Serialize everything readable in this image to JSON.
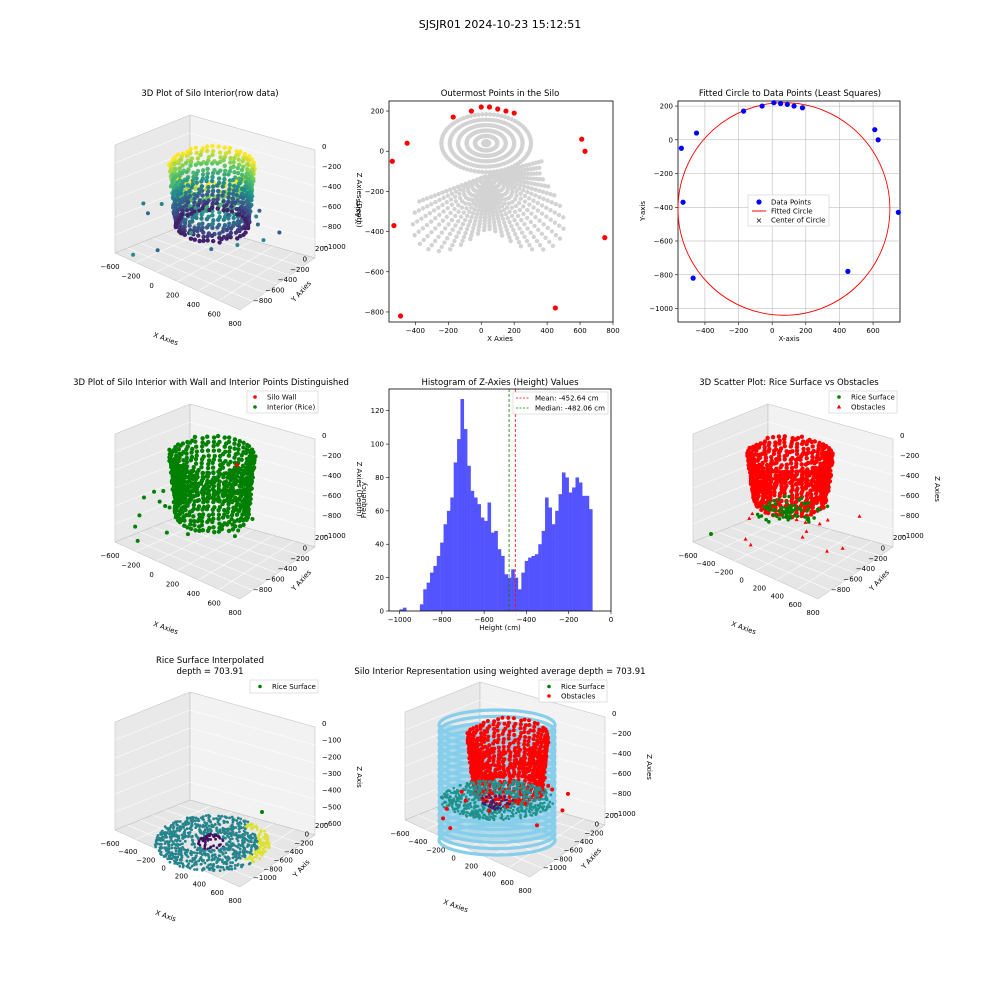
{
  "suptitle": "SJSJR01 2024-10-23 15:12:51",
  "panels": {
    "p1": {
      "title": "3D Plot of Silo Interior(row data)",
      "xlabel": "X Axies",
      "ylabel": "Y Axies",
      "zlabel": "Z Axies (Depth)",
      "xticks": [
        "−600",
        "−200",
        "0",
        "200",
        "400",
        "600",
        "800"
      ],
      "xticks_extra": "−400",
      "yticks": [
        "200",
        "0",
        "−200",
        "−400",
        "−600",
        "−800"
      ],
      "zticks": [
        "0",
        "−200",
        "−400",
        "−600",
        "−800",
        "−1000"
      ]
    },
    "p2": {
      "title": "Outermost Points in the Silo",
      "xlabel": "X Axies",
      "ylabel": "Y Axies",
      "xticks": [
        "−400",
        "−200",
        "0",
        "200",
        "400",
        "600",
        "800"
      ],
      "yticks": [
        "200",
        "0",
        "−200",
        "−400",
        "−600",
        "−800"
      ]
    },
    "p3": {
      "title": "Fitted Circle to Data Points (Least Squares)",
      "xlabel": "X-axis",
      "ylabel": "Y-axis",
      "xticks": [
        "−400",
        "−200",
        "0",
        "200",
        "400",
        "600"
      ],
      "yticks": [
        "200",
        "0",
        "−200",
        "−400",
        "−600",
        "−800",
        "−1000"
      ],
      "legend": [
        "Data Points",
        "Fitted Circle",
        "Center of Circle"
      ]
    },
    "p4": {
      "title": "3D Plot of Silo Interior with Wall and Interior Points Distinguished",
      "xlabel": "X Axies",
      "ylabel": "Y Axies",
      "zlabel": "Z Axies (Depth)",
      "legend": [
        "Silo Wall",
        "Interior (Rice)"
      ]
    },
    "p5": {
      "title": "Histogram of Z-Axies (Height) Values",
      "xlabel": "Height (cm)",
      "ylabel": "Frequency",
      "xticks": [
        "−1000",
        "−800",
        "−600",
        "−400",
        "−200",
        "0"
      ],
      "yticks": [
        "0",
        "20",
        "40",
        "60",
        "80",
        "100",
        "120"
      ],
      "legend": [
        "Mean: -452.64 cm",
        "Median: -482.06 cm"
      ]
    },
    "p6": {
      "title": "3D Scatter Plot: Rice Surface vs Obstacles",
      "xlabel": "X Axies",
      "ylabel": "Y Axies",
      "zlabel": "Z Axies",
      "legend": [
        "Rice Surface",
        "Obstacles"
      ]
    },
    "p7": {
      "title": "Rice Surface Interpolated",
      "subtitle": "depth = 703.91",
      "xlabel": "X Axis",
      "ylabel": "Y Axis",
      "zlabel": "Z Axis",
      "zticks": [
        "0",
        "−100",
        "−200",
        "−300",
        "−400",
        "−500",
        "−600"
      ],
      "yticks": [
        "200",
        "0",
        "−200",
        "−400",
        "−600",
        "−800",
        "−1000"
      ],
      "legend": [
        "Rice Surface"
      ]
    },
    "p8": {
      "title": "Silo Interior Representation using weighted average depth = 703.91",
      "xlabel": "X Axies",
      "ylabel": "Y Axies",
      "zlabel": "Z Axies",
      "yticks": [
        "200",
        "0",
        "−200",
        "−400",
        "−600",
        "−800",
        "−1000"
      ],
      "legend": [
        "Rice Surface",
        "Obstacles"
      ]
    }
  },
  "colors": {
    "red": "#ff0000",
    "blue": "#0000ff",
    "green": "#008000",
    "gray": "#d3d3d3",
    "hist": "#4b4bff",
    "sky": "#87ceeb"
  },
  "chart_data": [
    {
      "type": "scatter",
      "id": "outermost",
      "x_range": [
        -560,
        800
      ],
      "y_range": [
        -850,
        250
      ],
      "points": [
        [
          -540,
          -50
        ],
        [
          -450,
          40
        ],
        [
          -170,
          170
        ],
        [
          -60,
          200
        ],
        [
          0,
          220
        ],
        [
          50,
          220
        ],
        [
          100,
          210
        ],
        [
          150,
          200
        ],
        [
          200,
          190
        ],
        [
          -530,
          -370
        ],
        [
          -490,
          -820
        ],
        [
          610,
          60
        ],
        [
          630,
          0
        ],
        [
          750,
          -430
        ],
        [
          450,
          -780
        ]
      ]
    },
    {
      "type": "scatter",
      "id": "fitted-circle",
      "x_range": [
        -560,
        760
      ],
      "y_range": [
        -1080,
        230
      ],
      "points": [
        [
          -540,
          -50
        ],
        [
          -450,
          40
        ],
        [
          -170,
          170
        ],
        [
          -60,
          200
        ],
        [
          10,
          220
        ],
        [
          50,
          215
        ],
        [
          90,
          210
        ],
        [
          130,
          200
        ],
        [
          180,
          190
        ],
        [
          -530,
          -370
        ],
        [
          -470,
          -820
        ],
        [
          610,
          60
        ],
        [
          630,
          0
        ],
        [
          750,
          -430
        ],
        [
          450,
          -780
        ]
      ],
      "circle": {
        "cx": 70,
        "cy": -410,
        "r": 630
      }
    },
    {
      "type": "bar",
      "id": "histogram",
      "x_range": [
        -1050,
        0
      ],
      "y_range": [
        0,
        133
      ],
      "bins_start": -1000,
      "bin_width": 16,
      "values": [
        1,
        2,
        0,
        0,
        0,
        0,
        4,
        13,
        17,
        23,
        27,
        33,
        41,
        52,
        60,
        68,
        89,
        103,
        127,
        109,
        87,
        72,
        68,
        64,
        56,
        54,
        65,
        47,
        48,
        37,
        33,
        22,
        20,
        25,
        20,
        13,
        23,
        30,
        32,
        33,
        34,
        40,
        48,
        68,
        62,
        52,
        60,
        70,
        83,
        80,
        71,
        74,
        80,
        77,
        69,
        69,
        61
      ],
      "mean": -452.64,
      "median": -482.06
    }
  ]
}
